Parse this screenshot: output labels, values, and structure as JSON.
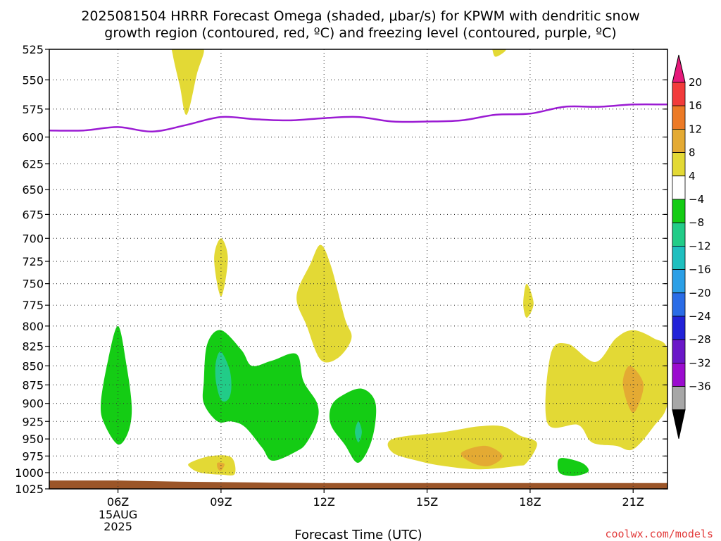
{
  "chart_data": {
    "type": "contour",
    "title_line1": "2025081504 HRRR Forecast Omega (shaded, μbar/s) for KPWM with dendritic snow",
    "title_line2": "growth region (contoured, red, ºC) and freezing level (contoured, purple, ºC)",
    "xlabel": "Forecast Time (UTC)",
    "credit": "coolwx.com/models",
    "x_ticks": [
      {
        "hour": 6,
        "label": "06Z",
        "sub": [
          "15AUG",
          "2025"
        ]
      },
      {
        "hour": 9,
        "label": "09Z",
        "sub": []
      },
      {
        "hour": 12,
        "label": "12Z",
        "sub": []
      },
      {
        "hour": 15,
        "label": "15Z",
        "sub": []
      },
      {
        "hour": 18,
        "label": "18Z",
        "sub": []
      },
      {
        "hour": 21,
        "label": "21Z",
        "sub": []
      }
    ],
    "xlim": [
      4.0,
      22.0
    ],
    "ylim": [
      525,
      1025
    ],
    "y_ticks": [
      525,
      550,
      575,
      600,
      625,
      650,
      675,
      700,
      725,
      750,
      775,
      800,
      825,
      850,
      875,
      900,
      925,
      950,
      975,
      1000,
      1025
    ],
    "y_scale": "log-pressure",
    "grid": true,
    "colorbar": {
      "labels": [
        "20",
        "16",
        "12",
        "8",
        "4",
        "-4",
        "-8",
        "-12",
        "-16",
        "-20",
        "-24",
        "-28",
        "-32",
        "-36"
      ],
      "colors": [
        "#f23b3b",
        "#ec7a26",
        "#e4aa33",
        "#e3d935",
        "#ffffff",
        "#14cc14",
        "#22cc88",
        "#1fbfbf",
        "#2b9fe6",
        "#2a6ce6",
        "#2222d8",
        "#6a17c8",
        "#9b0ccf",
        "#a7a7a7"
      ],
      "top_arrow_color": "#e6197a",
      "bottom_arrow_color": "#000000"
    },
    "freezing_level": {
      "color": "#9b1bd3",
      "x": [
        4.0,
        5.0,
        6.0,
        7.0,
        8.0,
        9.0,
        10.0,
        11.0,
        12.0,
        13.0,
        14.0,
        15.0,
        16.0,
        17.0,
        18.0,
        19.0,
        20.0,
        21.0,
        22.0
      ],
      "y": [
        594,
        594,
        591,
        595,
        589,
        582,
        584,
        585,
        583,
        582,
        586,
        586,
        585,
        580,
        579,
        573,
        573,
        571,
        571
      ]
    },
    "omega_regions": [
      {
        "level": "4 to 8",
        "color": "#e3d935",
        "pts": [
          [
            7.6,
            522
          ],
          [
            8.1,
            525
          ],
          [
            8.5,
            525
          ],
          [
            8.3,
            545
          ],
          [
            8.0,
            580
          ],
          [
            7.8,
            555
          ],
          [
            7.6,
            530
          ]
        ]
      },
      {
        "level": "4 to 8",
        "color": "#e3d935",
        "pts": [
          [
            16.9,
            522
          ],
          [
            17.3,
            525
          ],
          [
            17.0,
            531
          ],
          [
            16.9,
            525
          ]
        ]
      },
      {
        "level": "4 to 8",
        "color": "#e3d935",
        "pts": [
          [
            9.0,
            700
          ],
          [
            9.2,
            722
          ],
          [
            9.0,
            765
          ],
          [
            8.8,
            722
          ]
        ]
      },
      {
        "level": "4 to 8",
        "color": "#e3d935",
        "pts": [
          [
            11.9,
            707
          ],
          [
            12.2,
            730
          ],
          [
            12.6,
            790
          ],
          [
            12.8,
            815
          ],
          [
            12.4,
            840
          ],
          [
            11.9,
            842
          ],
          [
            11.5,
            800
          ],
          [
            11.2,
            765
          ],
          [
            11.6,
            728
          ]
        ]
      },
      {
        "level": "4 to 8",
        "color": "#e3d935",
        "pts": [
          [
            17.9,
            750
          ],
          [
            18.1,
            773
          ],
          [
            17.9,
            790
          ],
          [
            17.8,
            773
          ]
        ]
      },
      {
        "level": "4 to 8",
        "color": "#e3d935",
        "pts": [
          [
            21.0,
            805
          ],
          [
            21.6,
            815
          ],
          [
            22.0,
            830
          ],
          [
            22.0,
            900
          ],
          [
            21.6,
            932
          ],
          [
            21.0,
            965
          ],
          [
            20.5,
            960
          ],
          [
            19.8,
            955
          ],
          [
            19.4,
            930
          ],
          [
            18.5,
            927
          ],
          [
            18.6,
            835
          ],
          [
            19.1,
            822
          ],
          [
            19.9,
            845
          ],
          [
            20.5,
            815
          ]
        ]
      },
      {
        "level": "4 to 8",
        "color": "#e3d935",
        "pts": [
          [
            14.0,
            950
          ],
          [
            15.5,
            940
          ],
          [
            16.5,
            932
          ],
          [
            17.2,
            932
          ],
          [
            17.7,
            945
          ],
          [
            18.2,
            956
          ],
          [
            17.9,
            985
          ],
          [
            17.6,
            990
          ],
          [
            16.5,
            995
          ],
          [
            15.5,
            990
          ],
          [
            14.8,
            983
          ],
          [
            14.0,
            970
          ]
        ]
      },
      {
        "level": "4 to 8",
        "color": "#e3d935",
        "pts": [
          [
            8.1,
            985
          ],
          [
            8.7,
            975
          ],
          [
            9.3,
            977
          ],
          [
            9.4,
            1002
          ],
          [
            9.0,
            1003
          ],
          [
            8.4,
            1000
          ],
          [
            8.1,
            992
          ]
        ]
      },
      {
        "level": "8 to 12",
        "color": "#e4aa33",
        "pts": [
          [
            20.9,
            850
          ],
          [
            21.3,
            875
          ],
          [
            21.0,
            913
          ],
          [
            20.7,
            875
          ]
        ]
      },
      {
        "level": "8 to 12",
        "color": "#e4aa33",
        "pts": [
          [
            16.0,
            970
          ],
          [
            16.7,
            960
          ],
          [
            17.2,
            975
          ],
          [
            16.8,
            990
          ],
          [
            16.3,
            985
          ]
        ]
      },
      {
        "level": "8 to 12",
        "color": "#e4aa33",
        "pts": [
          [
            8.9,
            985
          ],
          [
            9.1,
            987
          ],
          [
            9.0,
            997
          ],
          [
            8.9,
            993
          ]
        ]
      },
      {
        "level": "-4 to -8",
        "color": "#14cc14",
        "pts": [
          [
            6.0,
            800
          ],
          [
            6.25,
            850
          ],
          [
            6.4,
            905
          ],
          [
            6.3,
            940
          ],
          [
            6.0,
            958
          ],
          [
            5.6,
            928
          ],
          [
            5.5,
            900
          ],
          [
            5.7,
            845
          ]
        ]
      },
      {
        "level": "-4 to -8",
        "color": "#14cc14",
        "pts": [
          [
            9.0,
            805
          ],
          [
            9.6,
            830
          ],
          [
            9.9,
            850
          ],
          [
            10.5,
            843
          ],
          [
            11.2,
            835
          ],
          [
            11.4,
            870
          ],
          [
            11.8,
            900
          ],
          [
            11.8,
            925
          ],
          [
            11.5,
            955
          ],
          [
            11.2,
            968
          ],
          [
            10.5,
            982
          ],
          [
            10.2,
            963
          ],
          [
            9.7,
            933
          ],
          [
            9.3,
            925
          ],
          [
            8.9,
            925
          ],
          [
            8.5,
            900
          ],
          [
            8.5,
            870
          ],
          [
            8.6,
            822
          ]
        ]
      },
      {
        "level": "-4 to -8",
        "color": "#14cc14",
        "pts": [
          [
            13.1,
            880
          ],
          [
            13.5,
            900
          ],
          [
            13.4,
            950
          ],
          [
            13.0,
            985
          ],
          [
            12.6,
            958
          ],
          [
            12.2,
            930
          ],
          [
            12.2,
            905
          ],
          [
            12.5,
            890
          ]
        ]
      },
      {
        "level": "-4 to -8",
        "color": "#14cc14",
        "pts": [
          [
            18.9,
            978
          ],
          [
            19.5,
            985
          ],
          [
            19.7,
            998
          ],
          [
            19.3,
            1005
          ],
          [
            18.9,
            1002
          ],
          [
            18.8,
            990
          ]
        ]
      },
      {
        "level": "-8 to -12",
        "color": "#22cc88",
        "pts": [
          [
            9.0,
            832
          ],
          [
            9.25,
            855
          ],
          [
            9.3,
            880
          ],
          [
            9.2,
            895
          ],
          [
            9.0,
            895
          ],
          [
            8.85,
            870
          ],
          [
            8.85,
            845
          ]
        ]
      },
      {
        "level": "-8 to -12",
        "color": "#22cc88",
        "pts": [
          [
            13.0,
            925
          ],
          [
            13.1,
            940
          ],
          [
            13.0,
            955
          ],
          [
            12.9,
            940
          ]
        ]
      }
    ],
    "terrain": {
      "color": "#9b5528",
      "x": [
        4.0,
        6.0,
        8.0,
        10.0,
        12.0,
        22.0
      ],
      "y_top": [
        1012,
        1012,
        1014,
        1015,
        1016,
        1016
      ]
    }
  }
}
